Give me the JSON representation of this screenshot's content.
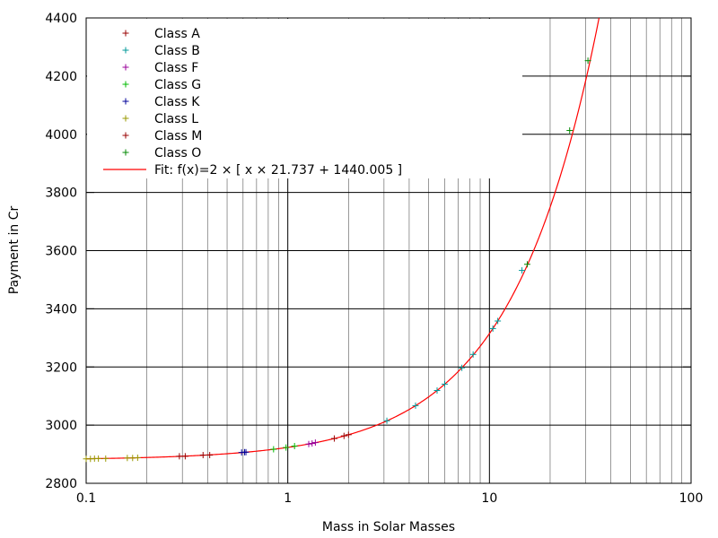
{
  "chart_data": {
    "type": "scatter",
    "xlabel": "Mass in Solar Masses",
    "ylabel": "Payment in Cr",
    "x_scale": "log",
    "xlim": [
      0.1,
      100
    ],
    "ylim": [
      2800,
      4400
    ],
    "x_ticks": [
      {
        "value": 0.1,
        "label": "0.1"
      },
      {
        "value": 1,
        "label": "1"
      },
      {
        "value": 10,
        "label": "10"
      },
      {
        "value": 100,
        "label": "100"
      }
    ],
    "y_ticks": [
      {
        "value": 2800,
        "label": "2800"
      },
      {
        "value": 3000,
        "label": "3000"
      },
      {
        "value": 3200,
        "label": "3200"
      },
      {
        "value": 3400,
        "label": "3400"
      },
      {
        "value": 3600,
        "label": "3600"
      },
      {
        "value": 3800,
        "label": "3800"
      },
      {
        "value": 4000,
        "label": "4000"
      },
      {
        "value": 4200,
        "label": "4200"
      },
      {
        "value": 4400,
        "label": "4400"
      }
    ],
    "grid": true,
    "legend_position": "top-left",
    "series": [
      {
        "name": "Class A",
        "color": "#990000",
        "points": [
          [
            1.7,
            2954
          ],
          [
            1.9,
            2963
          ],
          [
            2.0,
            2967
          ]
        ]
      },
      {
        "name": "Class B",
        "color": "#009999",
        "points": [
          [
            3.1,
            3015
          ],
          [
            4.3,
            3067
          ],
          [
            5.5,
            3119
          ],
          [
            6.0,
            3141
          ],
          [
            7.3,
            3197
          ],
          [
            8.3,
            3243
          ],
          [
            10.4,
            3332
          ],
          [
            11.0,
            3358
          ],
          [
            14.5,
            3532
          ]
        ]
      },
      {
        "name": "Class F",
        "color": "#990099",
        "points": [
          [
            1.27,
            2935
          ],
          [
            1.32,
            2937
          ],
          [
            1.37,
            2940
          ]
        ]
      },
      {
        "name": "Class G",
        "color": "#00bb00",
        "points": [
          [
            0.85,
            2917
          ],
          [
            0.98,
            2923
          ],
          [
            1.08,
            2928
          ]
        ]
      },
      {
        "name": "Class K",
        "color": "#000099",
        "points": [
          [
            0.59,
            2906
          ],
          [
            0.61,
            2907
          ],
          [
            0.62,
            2907
          ]
        ]
      },
      {
        "name": "Class L",
        "color": "#999900",
        "points": [
          [
            0.1,
            2884
          ],
          [
            0.105,
            2884
          ],
          [
            0.11,
            2885
          ],
          [
            0.115,
            2885
          ],
          [
            0.125,
            2885
          ],
          [
            0.16,
            2887
          ],
          [
            0.17,
            2887
          ],
          [
            0.18,
            2888
          ]
        ]
      },
      {
        "name": "Class M",
        "color": "#990000",
        "points": [
          [
            0.29,
            2893
          ],
          [
            0.31,
            2893
          ],
          [
            0.38,
            2897
          ],
          [
            0.41,
            2897
          ]
        ]
      },
      {
        "name": "Class O",
        "color": "#008800",
        "points": [
          [
            15.4,
            3553
          ],
          [
            25.0,
            4013
          ],
          [
            30.8,
            4253
          ]
        ]
      }
    ],
    "fit": {
      "name": "Fit: f(x)=2 × [ x × 21.737 + 1440.005 ]",
      "color": "#ff0000",
      "slope": 21.737,
      "intercept": 1440.005,
      "multiplier": 2
    }
  }
}
